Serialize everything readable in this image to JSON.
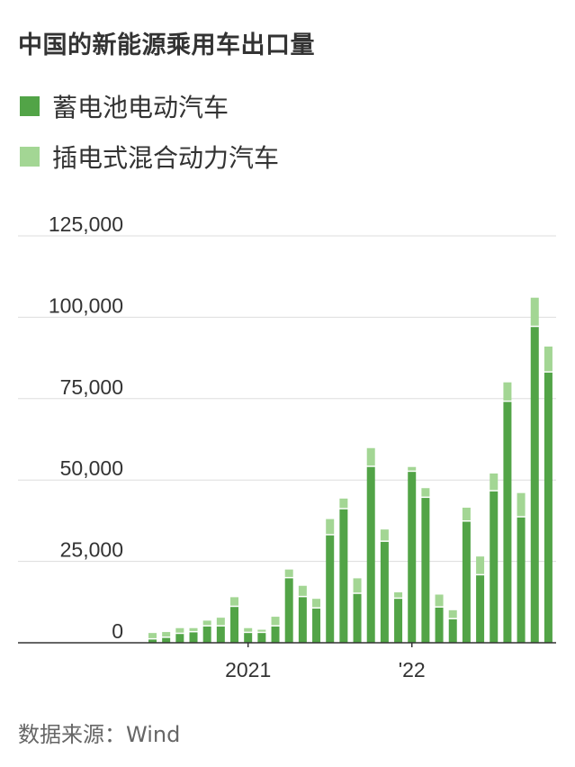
{
  "title": "中国的新能源乘用车出口量",
  "legend": [
    {
      "label": "蓄电池电动汽车",
      "color": "#52a447"
    },
    {
      "label": "插电式混合动力汽车",
      "color": "#a3d694"
    }
  ],
  "source": "数据来源：Wind",
  "chart_data": {
    "type": "bar",
    "stacked": true,
    "title": "中国的新能源乘用车出口量",
    "xlabel": "",
    "ylabel": "",
    "ylim": [
      0,
      125000
    ],
    "yticks": [
      0,
      25000,
      50000,
      75000,
      100000,
      125000
    ],
    "ytick_labels": [
      "0",
      "25,000",
      "50,000",
      "75,000",
      "100,000",
      "125,000"
    ],
    "x_tick_labels": [
      {
        "label": "2021",
        "index": 7
      },
      {
        "label": "'22",
        "index": 19
      }
    ],
    "grid": true,
    "legend_position": "top-left",
    "series": [
      {
        "name": "蓄电池电动汽车",
        "color": "#52a447",
        "values": [
          1000,
          1500,
          2700,
          3200,
          5000,
          5000,
          11000,
          3000,
          3000,
          5000,
          19800,
          14000,
          10500,
          33000,
          41000,
          15000,
          54000,
          31000,
          13500,
          52500,
          44500,
          10800,
          7200,
          37200,
          20700,
          46500,
          74000,
          38500,
          97000,
          83000
        ]
      },
      {
        "name": "插电式混合动力汽车",
        "color": "#a3d694",
        "values": [
          2000,
          1800,
          1800,
          1300,
          1800,
          2700,
          3000,
          1500,
          1000,
          3000,
          2700,
          3500,
          3000,
          5000,
          3300,
          4800,
          5800,
          3800,
          2000,
          1500,
          3000,
          4000,
          2800,
          4300,
          5800,
          5500,
          6000,
          7500,
          9000,
          8000
        ]
      }
    ]
  }
}
